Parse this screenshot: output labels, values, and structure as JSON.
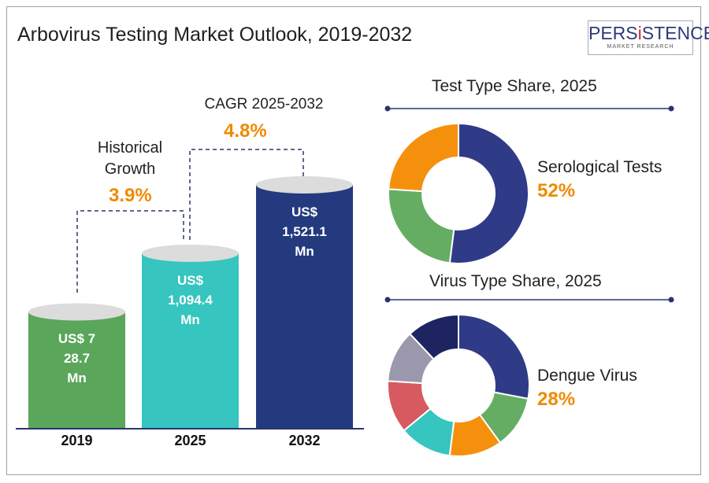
{
  "title": "Arbovirus Testing Market Outlook, 2019-2032",
  "logo": {
    "name_a": "PERS",
    "name_i": "i",
    "name_b": "STENCE",
    "tagline": "MARKET RESEARCH"
  },
  "historical": {
    "label1": "Historical",
    "label2": "Growth",
    "value": "3.9%"
  },
  "cagr": {
    "label": "CAGR 2025-2032",
    "value": "4.8%"
  },
  "chart_data": [
    {
      "type": "bar",
      "title": "Arbovirus Testing Market Outlook, 2019-2032",
      "categories": [
        "2019",
        "2025",
        "2032"
      ],
      "values": [
        728.7,
        1094.4,
        1521.1
      ],
      "unit": "US$ Mn",
      "labels": [
        [
          "US$ 7",
          "28.7",
          "Mn"
        ],
        [
          "US$",
          "1,094.4",
          "Mn"
        ],
        [
          "US$",
          "1,521.1",
          "Mn"
        ]
      ],
      "colors": [
        "#5aa65a",
        "#36c5bf",
        "#233a7e"
      ]
    },
    {
      "type": "pie",
      "title": "Test Type Share, 2025",
      "slices": [
        {
          "name": "Serological Tests",
          "value": 52,
          "color": "#2f3b87"
        },
        {
          "name": "",
          "value": 24,
          "color": "#66ad64"
        },
        {
          "name": "",
          "value": 24,
          "color": "#f5900c"
        }
      ],
      "highlight": {
        "label": "Serological Tests",
        "value": "52%"
      }
    },
    {
      "type": "pie",
      "title": "Virus Type Share, 2025",
      "slices": [
        {
          "name": "Dengue Virus",
          "value": 28,
          "color": "#2f3b87"
        },
        {
          "name": "",
          "value": 12,
          "color": "#66ad64"
        },
        {
          "name": "",
          "value": 12,
          "color": "#f5900c"
        },
        {
          "name": "",
          "value": 12,
          "color": "#36c5bf"
        },
        {
          "name": "",
          "value": 12,
          "color": "#d65a5f"
        },
        {
          "name": "",
          "value": 12,
          "color": "#9b98ad"
        },
        {
          "name": "",
          "value": 12,
          "color": "#1e2460"
        }
      ],
      "highlight": {
        "label": "Dengue Virus",
        "value": "28%"
      }
    }
  ]
}
